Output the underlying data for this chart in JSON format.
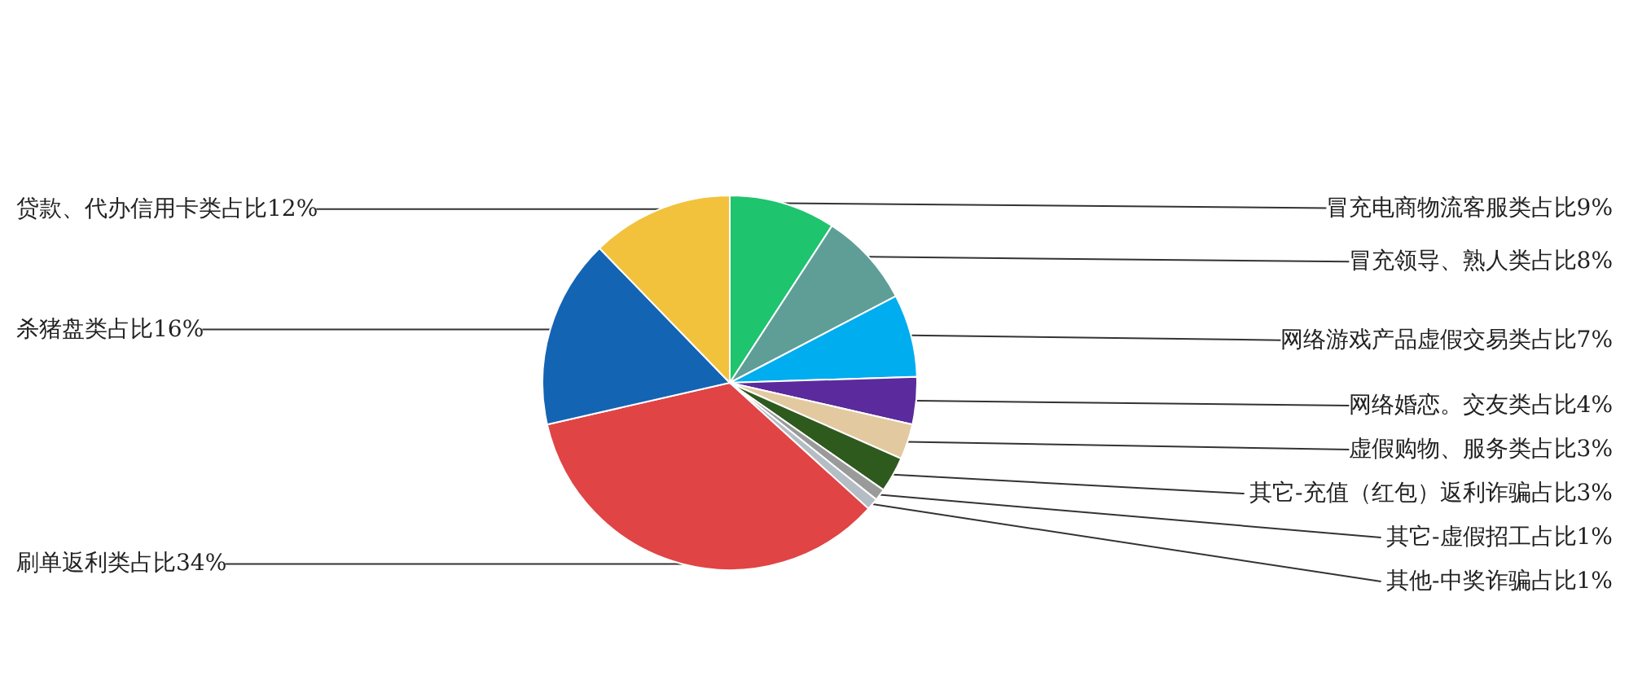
{
  "chart_data": {
    "type": "pie",
    "categories": [
      "冒充电商物流客服类占比9%",
      "冒充领导、熟人类占比8%",
      "网络游戏产品虚假交易类占比7%",
      "网络婚恋。交友类占比4%",
      "虚假购物、服务类占比3%",
      "其它-充值（红包）返利诈骗占比3%",
      "其它-虚假招工占比1%",
      "其他-中奖诈骗占比1%",
      "刷单返利类占比34%",
      "杀猪盘类占比16%",
      "贷款、代办信用卡类占比12%"
    ],
    "values": [
      9,
      8,
      7,
      4,
      3,
      3,
      1,
      1,
      34,
      16,
      12
    ],
    "colors": [
      "#1ec46e",
      "#5f9e96",
      "#00adef",
      "#5b2a9c",
      "#e3c9a0",
      "#2e5a1e",
      "#9a9a9a",
      "#b4bcc4",
      "#e04444",
      "#1464b4",
      "#f2c23c"
    ]
  }
}
